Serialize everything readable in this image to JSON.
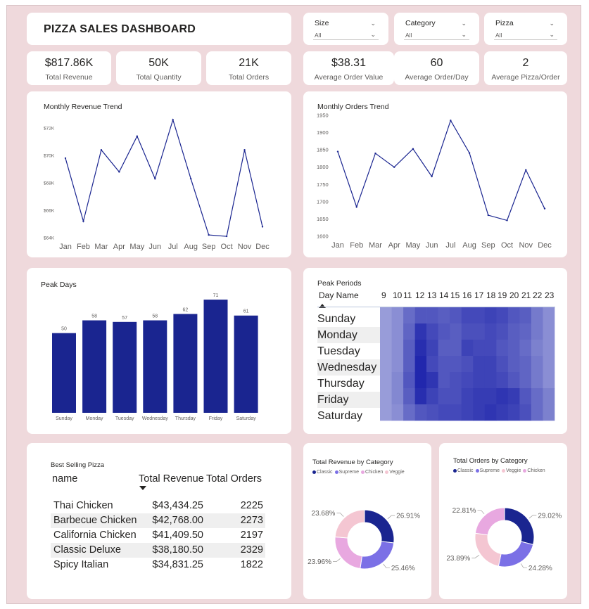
{
  "header": {
    "title": "PIZZA SALES DASHBOARD"
  },
  "slicers": [
    {
      "label": "Size",
      "value": "All"
    },
    {
      "label": "Category",
      "value": "All"
    },
    {
      "label": "Pizza",
      "value": "All"
    }
  ],
  "kpis": [
    {
      "value": "$817.86K",
      "label": "Total Revenue"
    },
    {
      "value": "50K",
      "label": "Total Quantity"
    },
    {
      "value": "21K",
      "label": "Total Orders"
    },
    {
      "value": "$38.31",
      "label": "Average Order Value"
    },
    {
      "value": "60",
      "label": "Average Order/Day"
    },
    {
      "value": "2",
      "label": "Average Pizza/Order"
    }
  ],
  "colors": {
    "navy": "#1a2590",
    "purple": "#7b70e6",
    "pink": "#f4c6d2",
    "lavender": "#e8a8e0",
    "background": "#efd9dc"
  },
  "chart_data": [
    {
      "type": "line",
      "title": "Monthly Revenue Trend",
      "categories": [
        "Jan",
        "Feb",
        "Mar",
        "Apr",
        "May",
        "Jun",
        "Jul",
        "Aug",
        "Sep",
        "Oct",
        "Nov",
        "Dec"
      ],
      "series": [
        {
          "values": [
            69800,
            65200,
            70400,
            68800,
            71400,
            68300,
            72600,
            68300,
            64200,
            64100,
            70400,
            64800
          ]
        }
      ],
      "ylim": [
        64000,
        72000
      ],
      "yticks": [
        "$64K",
        "$66K",
        "$68K",
        "$70K",
        "$72K"
      ]
    },
    {
      "type": "line",
      "title": "Monthly Orders Trend",
      "categories": [
        "Jan",
        "Feb",
        "Mar",
        "Apr",
        "May",
        "Jun",
        "Jul",
        "Aug",
        "Sep",
        "Oct",
        "Nov",
        "Dec"
      ],
      "series": [
        {
          "values": [
            1845,
            1685,
            1840,
            1800,
            1853,
            1773,
            1935,
            1841,
            1661,
            1646,
            1792,
            1680
          ]
        }
      ],
      "ylim": [
        1600,
        1950
      ],
      "yticks": [
        "1600",
        "1650",
        "1700",
        "1750",
        "1800",
        "1850",
        "1900",
        "1950"
      ]
    },
    {
      "type": "bar",
      "title": "Peak Days",
      "categories": [
        "Sunday",
        "Monday",
        "Tuesday",
        "Wednesday",
        "Thursday",
        "Friday",
        "Saturday"
      ],
      "values": [
        50,
        58,
        57,
        58,
        62,
        71,
        61
      ],
      "ylim": [
        0,
        75
      ]
    },
    {
      "type": "heatmap",
      "title": "Peak Periods",
      "row_header": "Day Name",
      "rows": [
        "Sunday",
        "Monday",
        "Tuesday",
        "Wednesday",
        "Thursday",
        "Friday",
        "Saturday"
      ],
      "columns": [
        "9",
        "10",
        "11",
        "12",
        "13",
        "14",
        "15",
        "16",
        "17",
        "18",
        "19",
        "20",
        "21",
        "22",
        "23"
      ],
      "values": [
        [
          0.1,
          0.2,
          0.45,
          0.6,
          0.6,
          0.55,
          0.6,
          0.7,
          0.7,
          0.75,
          0.7,
          0.6,
          0.55,
          0.35,
          0.2
        ],
        [
          0.1,
          0.2,
          0.5,
          0.85,
          0.7,
          0.6,
          0.55,
          0.65,
          0.65,
          0.7,
          0.65,
          0.55,
          0.5,
          0.35,
          0.2
        ],
        [
          0.1,
          0.2,
          0.55,
          0.9,
          0.75,
          0.55,
          0.55,
          0.75,
          0.7,
          0.7,
          0.6,
          0.55,
          0.45,
          0.3,
          0.2
        ],
        [
          0.1,
          0.2,
          0.55,
          0.95,
          0.7,
          0.6,
          0.6,
          0.65,
          0.75,
          0.75,
          0.65,
          0.55,
          0.5,
          0.35,
          0.2
        ],
        [
          0.1,
          0.25,
          0.6,
          0.95,
          0.85,
          0.6,
          0.65,
          0.7,
          0.75,
          0.75,
          0.7,
          0.6,
          0.5,
          0.35,
          0.2
        ],
        [
          0.1,
          0.25,
          0.55,
          0.9,
          0.75,
          0.65,
          0.65,
          0.75,
          0.8,
          0.8,
          0.85,
          0.8,
          0.6,
          0.45,
          0.3
        ],
        [
          0.1,
          0.2,
          0.45,
          0.6,
          0.65,
          0.7,
          0.7,
          0.75,
          0.8,
          0.85,
          0.8,
          0.75,
          0.65,
          0.45,
          0.3
        ]
      ]
    },
    {
      "type": "table",
      "title": "Best Selling Pizza",
      "columns": [
        "name",
        "Total Revenue",
        "Total Orders"
      ],
      "rows": [
        [
          "Thai Chicken",
          "$43,434.25",
          "2225"
        ],
        [
          "Barbecue Chicken",
          "$42,768.00",
          "2273"
        ],
        [
          "California Chicken",
          "$41,409.50",
          "2197"
        ],
        [
          "Classic Deluxe",
          "$38,180.50",
          "2329"
        ],
        [
          "Spicy Italian",
          "$34,831.25",
          "1822"
        ]
      ]
    },
    {
      "type": "pie",
      "title": "Total Revenue by Category",
      "legend": [
        "Classic",
        "Supreme",
        "Chicken",
        "Veggie"
      ],
      "slices": [
        {
          "name": "Classic",
          "value": 26.91,
          "label": "26.91%",
          "color": "#1a2590"
        },
        {
          "name": "Supreme",
          "value": 25.46,
          "label": "25.46%",
          "color": "#7b70e6"
        },
        {
          "name": "Chicken",
          "value": 23.96,
          "label": "23.96%",
          "color": "#e8a8e0"
        },
        {
          "name": "Veggie",
          "value": 23.68,
          "label": "23.68%",
          "color": "#f4c6d2"
        }
      ]
    },
    {
      "type": "pie",
      "title": "Total Orders by Category",
      "legend": [
        "Classic",
        "Supreme",
        "Veggie",
        "Chicken"
      ],
      "slices": [
        {
          "name": "Classic",
          "value": 29.02,
          "label": "29.02%",
          "color": "#1a2590"
        },
        {
          "name": "Supreme",
          "value": 24.28,
          "label": "24.28%",
          "color": "#7b70e6"
        },
        {
          "name": "Veggie",
          "value": 23.89,
          "label": "23.89%",
          "color": "#f4c6d2"
        },
        {
          "name": "Chicken",
          "value": 22.81,
          "label": "22.81%",
          "color": "#e8a8e0"
        }
      ]
    }
  ]
}
